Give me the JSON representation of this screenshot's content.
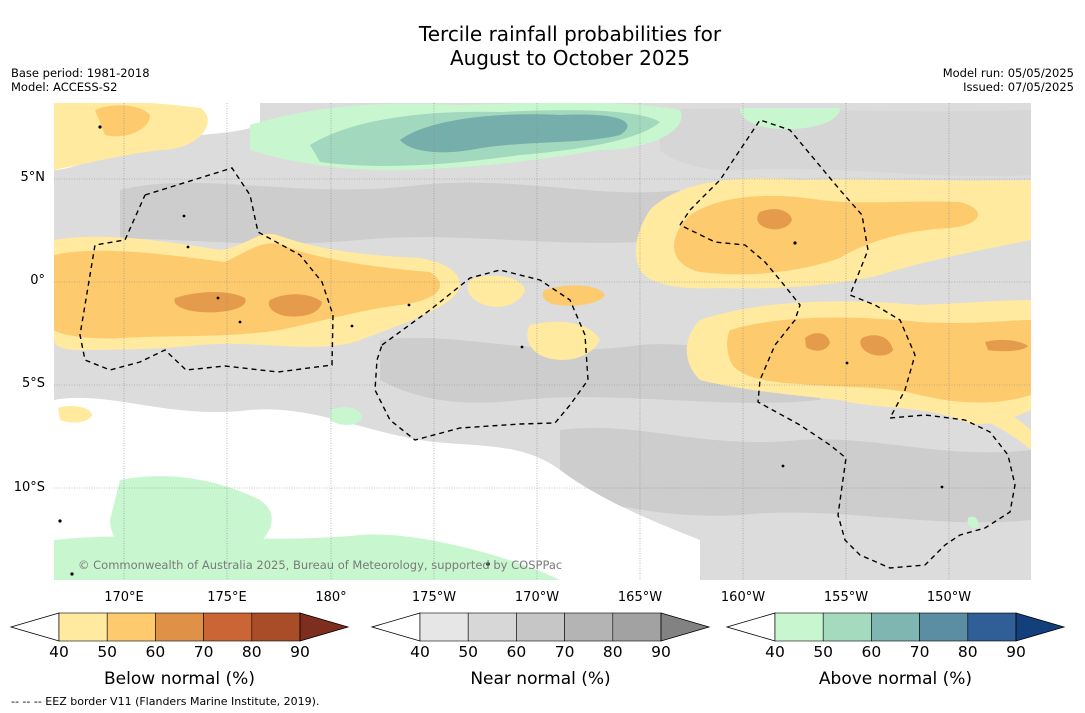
{
  "title": {
    "line1": "Tercile rainfall probabilities for",
    "line2": "August to October 2025"
  },
  "meta": {
    "base_period": "Base period: 1981-2018",
    "model": "Model: ACCESS-S2",
    "model_run": "Model run: 05/05/2025",
    "issued": "Issued: 07/05/2025"
  },
  "map": {
    "lon_labels": [
      "170°E",
      "175°E",
      "180°",
      "175°W",
      "170°W",
      "165°W",
      "160°W",
      "155°W",
      "150°W"
    ],
    "lat_labels": [
      "5°N",
      "0°",
      "5°S",
      "10°S"
    ],
    "credit": "© Commonwealth of Australia 2025, Bureau of Meteorology, supported by COSPPac",
    "eez_border_style": "dashed",
    "shading": {
      "near_normal": "#dcdcdc",
      "near_normal_darker": "#cdcdcd",
      "below_40": "#ffeaa0",
      "below_50": "#fdcb6e",
      "below_60": "#e59b4c",
      "above_40": "#c8f7cf",
      "above_50": "#a2d8be",
      "above_60": "#76aeab"
    }
  },
  "colorbars": [
    {
      "title": "Below normal (%)",
      "ticks": [
        "40",
        "50",
        "60",
        "70",
        "80",
        "90"
      ],
      "colors": [
        "#ffeaa0",
        "#fdcb6e",
        "#e09148",
        "#cc6535",
        "#a94c28",
        "#7e2e1f"
      ]
    },
    {
      "title": "Near normal (%)",
      "ticks": [
        "40",
        "50",
        "60",
        "70",
        "80",
        "90"
      ],
      "colors": [
        "#e6e6e6",
        "#d7d7d7",
        "#c6c6c6",
        "#b4b4b4",
        "#a2a2a2",
        "#828282"
      ]
    },
    {
      "title": "Above normal (%)",
      "ticks": [
        "40",
        "50",
        "60",
        "70",
        "80",
        "90"
      ],
      "colors": [
        "#c8f7cf",
        "#a4dbbf",
        "#7fb6b1",
        "#5b8ea3",
        "#2f5f96",
        "#133f7c"
      ]
    }
  ],
  "footnote": "--  --  -- EEZ border V11 (Flanders Marine Institute, 2019)."
}
